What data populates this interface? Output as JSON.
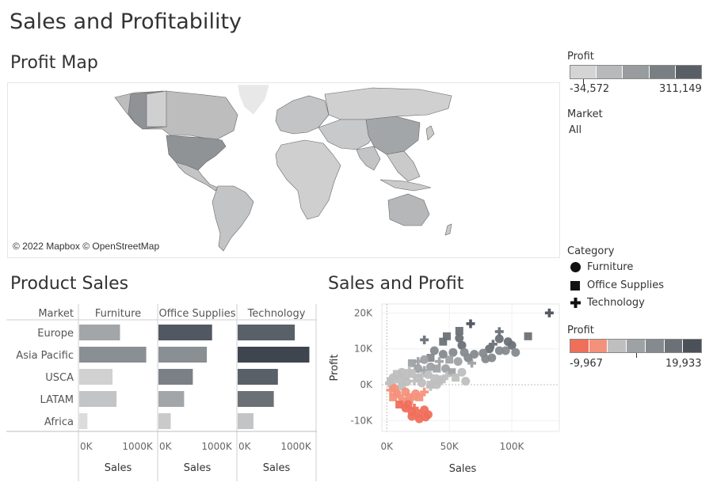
{
  "dashboard": {
    "title": "Sales and Profitability"
  },
  "map": {
    "title": "Profit Map",
    "credit": "© 2022 Mapbox © OpenStreetMap"
  },
  "legends": {
    "profit_map": {
      "title": "Profit",
      "min": "-34,572",
      "max": "311,149",
      "colors": [
        "#d4d4d4",
        "#b7b9ba",
        "#989c9e",
        "#7a7f83",
        "#5a5f66"
      ]
    },
    "market": {
      "title": "Market",
      "value": "All"
    },
    "category": {
      "title": "Category",
      "items": [
        {
          "label": "Furniture",
          "shape": "circle"
        },
        {
          "label": "Office Supplies",
          "shape": "square"
        },
        {
          "label": "Technology",
          "shape": "plus"
        }
      ]
    },
    "profit_scatter": {
      "title": "Profit",
      "min": "-9,967",
      "max": "19,933",
      "colors": [
        "#ef6f5b",
        "#f4917b",
        "#bfbfbf",
        "#9fa2a4",
        "#858a8e",
        "#6c7177",
        "#4b5059"
      ]
    }
  },
  "chart_data": [
    {
      "type": "bar",
      "title": "Product Sales",
      "row_header": "Market",
      "categories": [
        "Europe",
        "Asia Pacific",
        "USCA",
        "LATAM",
        "Africa"
      ],
      "panels": [
        {
          "name": "Furniture",
          "values": [
            700000,
            1150000,
            570000,
            640000,
            140000
          ],
          "colors": [
            "#a3a6a8",
            "#8a8f93",
            "#d1d1d1",
            "#c3c4c5",
            "#dcdcdc"
          ]
        },
        {
          "name": "Office Supplies",
          "values": [
            920000,
            830000,
            590000,
            440000,
            210000
          ],
          "colors": [
            "#525861",
            "#8a8f93",
            "#7a8086",
            "#a3a6a8",
            "#cacaca"
          ]
        },
        {
          "name": "Technology",
          "values": [
            980000,
            1230000,
            690000,
            620000,
            270000
          ],
          "colors": [
            "#5a6068",
            "#3f454f",
            "#5a6068",
            "#6a7076",
            "#c3c4c5"
          ]
        }
      ],
      "xlim": [
        0,
        1250000
      ],
      "x_ticks": [
        "0K",
        "1000K"
      ],
      "xlabel": "Sales"
    },
    {
      "type": "scatter",
      "title": "Sales and Profit",
      "xlabel": "Sales",
      "ylabel": "Profit",
      "xlim": [
        -4000,
        138000
      ],
      "ylim": [
        -13000,
        22500
      ],
      "x_ticks": [
        "0K",
        "50K",
        "100K"
      ],
      "y_ticks": [
        "20K",
        "10K",
        "0K",
        "-10K"
      ],
      "points": [
        {
          "x": 130000,
          "y": 20000,
          "c": "Technology",
          "p": 19933
        },
        {
          "x": 67000,
          "y": 17000,
          "c": "Technology",
          "p": 16000
        },
        {
          "x": 113000,
          "y": 13500,
          "c": "Office Supplies",
          "p": 13500
        },
        {
          "x": 90000,
          "y": 14800,
          "c": "Technology",
          "p": 14000
        },
        {
          "x": 58000,
          "y": 15000,
          "c": "Office Supplies",
          "p": 14000
        },
        {
          "x": 90000,
          "y": 12800,
          "c": "Furniture",
          "p": 12000
        },
        {
          "x": 97000,
          "y": 12000,
          "c": "Furniture",
          "p": 12000
        },
        {
          "x": 85000,
          "y": 11300,
          "c": "Technology",
          "p": 11000
        },
        {
          "x": 82000,
          "y": 10000,
          "c": "Furniture",
          "p": 10000
        },
        {
          "x": 90000,
          "y": 9500,
          "c": "Furniture",
          "p": 9000
        },
        {
          "x": 100000,
          "y": 11000,
          "c": "Furniture",
          "p": 10000
        },
        {
          "x": 103000,
          "y": 9000,
          "c": "Furniture",
          "p": 9000
        },
        {
          "x": 77000,
          "y": 8800,
          "c": "Furniture",
          "p": 8000
        },
        {
          "x": 84000,
          "y": 7500,
          "c": "Furniture",
          "p": 7000
        },
        {
          "x": 79000,
          "y": 7200,
          "c": "Furniture",
          "p": 7000
        },
        {
          "x": 95000,
          "y": 9500,
          "c": "Furniture",
          "p": 9000
        },
        {
          "x": 60000,
          "y": 11000,
          "c": "Furniture",
          "p": 11000
        },
        {
          "x": 58000,
          "y": 13000,
          "c": "Furniture",
          "p": 13000
        },
        {
          "x": 30000,
          "y": 12500,
          "c": "Technology",
          "p": 12000
        },
        {
          "x": 48000,
          "y": 13500,
          "c": "Office Supplies",
          "p": 13000
        },
        {
          "x": 45000,
          "y": 12000,
          "c": "Office Supplies",
          "p": 12000
        },
        {
          "x": 62000,
          "y": 9000,
          "c": "Furniture",
          "p": 9000
        },
        {
          "x": 53000,
          "y": 9000,
          "c": "Furniture",
          "p": 8000
        },
        {
          "x": 68000,
          "y": 6000,
          "c": "Technology",
          "p": 6000
        },
        {
          "x": 65000,
          "y": 7500,
          "c": "Furniture",
          "p": 7000
        },
        {
          "x": 70000,
          "y": 8500,
          "c": "Furniture",
          "p": 8000
        },
        {
          "x": 57000,
          "y": 6500,
          "c": "Furniture",
          "p": 6000
        },
        {
          "x": 50000,
          "y": 7000,
          "c": "Office Supplies",
          "p": 6000
        },
        {
          "x": 45000,
          "y": 8500,
          "c": "Furniture",
          "p": 8000
        },
        {
          "x": 38000,
          "y": 9500,
          "c": "Furniture",
          "p": 9000
        },
        {
          "x": 35000,
          "y": 7500,
          "c": "Office Supplies",
          "p": 7000
        },
        {
          "x": 42000,
          "y": 6500,
          "c": "Technology",
          "p": 6000
        },
        {
          "x": 30000,
          "y": 7000,
          "c": "Furniture",
          "p": 6000
        },
        {
          "x": 25000,
          "y": 6500,
          "c": "Technology",
          "p": 5000
        },
        {
          "x": 20000,
          "y": 6000,
          "c": "Office Supplies",
          "p": 5000
        },
        {
          "x": 35000,
          "y": 5000,
          "c": "Furniture",
          "p": 4000
        },
        {
          "x": 40000,
          "y": 4500,
          "c": "Office Supplies",
          "p": 4000
        },
        {
          "x": 47000,
          "y": 4500,
          "c": "Furniture",
          "p": 3000
        },
        {
          "x": 52000,
          "y": 3500,
          "c": "Office Supplies",
          "p": 3000
        },
        {
          "x": 60000,
          "y": 3500,
          "c": "Furniture",
          "p": 2000
        },
        {
          "x": 48000,
          "y": 2500,
          "c": "Technology",
          "p": 2000
        },
        {
          "x": 44000,
          "y": 1500,
          "c": "Office Supplies",
          "p": 1000
        },
        {
          "x": 30000,
          "y": 4000,
          "c": "Technology",
          "p": 3000
        },
        {
          "x": 25000,
          "y": 4500,
          "c": "Furniture",
          "p": 3000
        },
        {
          "x": 18000,
          "y": 4000,
          "c": "Technology",
          "p": 2000
        },
        {
          "x": 12000,
          "y": 3500,
          "c": "Furniture",
          "p": 1500
        },
        {
          "x": 8000,
          "y": 3000,
          "c": "Office Supplies",
          "p": 1000
        },
        {
          "x": 5000,
          "y": 2000,
          "c": "Furniture",
          "p": 500
        },
        {
          "x": 3000,
          "y": 1000,
          "c": "Office Supplies",
          "p": 300
        },
        {
          "x": 2000,
          "y": 500,
          "c": "Technology",
          "p": 100
        },
        {
          "x": 4000,
          "y": 0,
          "c": "Furniture",
          "p": 0
        },
        {
          "x": 10000,
          "y": 1500,
          "c": "Office Supplies",
          "p": 500
        },
        {
          "x": 15000,
          "y": 2500,
          "c": "Furniture",
          "p": 800
        },
        {
          "x": 20000,
          "y": 3000,
          "c": "Office Supplies",
          "p": 1000
        },
        {
          "x": 25000,
          "y": 2000,
          "c": "Furniture",
          "p": 600
        },
        {
          "x": 28000,
          "y": 2500,
          "c": "Technology",
          "p": 700
        },
        {
          "x": 33000,
          "y": 2800,
          "c": "Furniture",
          "p": 900
        },
        {
          "x": 38000,
          "y": 1800,
          "c": "Office Supplies",
          "p": 500
        },
        {
          "x": 42000,
          "y": 1000,
          "c": "Furniture",
          "p": 300
        },
        {
          "x": 35000,
          "y": 0,
          "c": "Office Supplies",
          "p": 0
        },
        {
          "x": 28000,
          "y": 500,
          "c": "Furniture",
          "p": 0
        },
        {
          "x": 22000,
          "y": 1000,
          "c": "Technology",
          "p": 200
        },
        {
          "x": 16000,
          "y": 800,
          "c": "Furniture",
          "p": 0
        },
        {
          "x": 12000,
          "y": -500,
          "c": "Office Supplies",
          "p": -500
        },
        {
          "x": 6000,
          "y": -1000,
          "c": "Furniture",
          "p": -800
        },
        {
          "x": 3000,
          "y": -1500,
          "c": "Technology",
          "p": -1500
        },
        {
          "x": 8000,
          "y": -2500,
          "c": "Furniture",
          "p": -2500
        },
        {
          "x": 5000,
          "y": -3500,
          "c": "Office Supplies",
          "p": -3500
        },
        {
          "x": 10000,
          "y": -3000,
          "c": "Technology",
          "p": -3000
        },
        {
          "x": 15000,
          "y": -2000,
          "c": "Furniture",
          "p": -2000
        },
        {
          "x": 18000,
          "y": -3500,
          "c": "Office Supplies",
          "p": -3500
        },
        {
          "x": 13000,
          "y": -4500,
          "c": "Furniture",
          "p": -4500
        },
        {
          "x": 20000,
          "y": -4000,
          "c": "Technology",
          "p": -4000
        },
        {
          "x": 23000,
          "y": -2500,
          "c": "Furniture",
          "p": -2500
        },
        {
          "x": 26000,
          "y": -3500,
          "c": "Office Supplies",
          "p": -3500
        },
        {
          "x": 30000,
          "y": -2000,
          "c": "Technology",
          "p": -2000
        },
        {
          "x": 17000,
          "y": -5500,
          "c": "Furniture",
          "p": -5500
        },
        {
          "x": 10000,
          "y": -5500,
          "c": "Office Supplies",
          "p": -5500
        },
        {
          "x": 22000,
          "y": -6500,
          "c": "Technology",
          "p": -6500
        },
        {
          "x": 15000,
          "y": -6500,
          "c": "Furniture",
          "p": -6500
        },
        {
          "x": 20000,
          "y": -7500,
          "c": "Furniture",
          "p": -7500
        },
        {
          "x": 25000,
          "y": -8000,
          "c": "Furniture",
          "p": -8000
        },
        {
          "x": 30000,
          "y": -7000,
          "c": "Furniture",
          "p": -7000
        },
        {
          "x": 20000,
          "y": -8800,
          "c": "Furniture",
          "p": -9000
        },
        {
          "x": 26000,
          "y": -9500,
          "c": "Furniture",
          "p": -9500
        },
        {
          "x": 31000,
          "y": -9000,
          "c": "Furniture",
          "p": -9500
        },
        {
          "x": 33000,
          "y": -8300,
          "c": "Furniture",
          "p": -9967
        },
        {
          "x": 35000,
          "y": -500,
          "c": "Technology",
          "p": -300
        },
        {
          "x": 40000,
          "y": 0,
          "c": "Furniture",
          "p": 0
        },
        {
          "x": 55000,
          "y": 2000,
          "c": "Office Supplies",
          "p": 1500
        },
        {
          "x": 63000,
          "y": 1000,
          "c": "Furniture",
          "p": 800
        }
      ]
    }
  ]
}
